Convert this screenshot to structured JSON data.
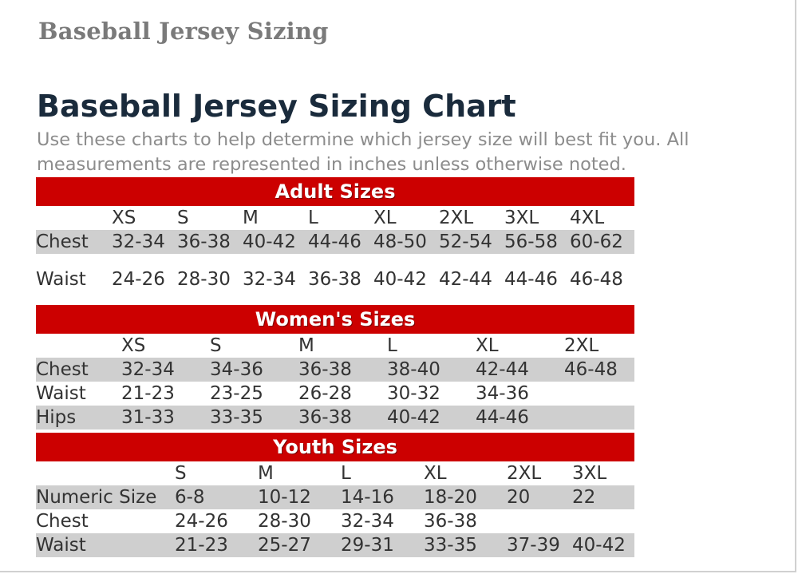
{
  "page": {
    "heading": "Baseball Jersey Sizing",
    "title": "Baseball Jersey Sizing Chart",
    "intro": "Use these charts to help determine which jersey size will best fit you. All measurements are represented in inches unless otherwise noted."
  },
  "adult": {
    "title": "Adult Sizes",
    "sizes": [
      "XS",
      "S",
      "M",
      "L",
      "XL",
      "2XL",
      "3XL",
      "4XL"
    ],
    "rows": [
      {
        "label": "Chest",
        "values": [
          "32-34",
          "36-38",
          "40-42",
          "44-46",
          "48-50",
          "52-54",
          "56-58",
          "60-62"
        ]
      },
      {
        "label": "Waist",
        "values": [
          "24-26",
          "28-30",
          "32-34",
          "36-38",
          "40-42",
          "42-44",
          "44-46",
          "46-48"
        ]
      }
    ]
  },
  "women": {
    "title": "Women's Sizes",
    "sizes": [
      "XS",
      "S",
      "M",
      "L",
      "XL",
      "2XL"
    ],
    "rows": [
      {
        "label": "Chest",
        "values": [
          "32-34",
          "34-36",
          "36-38",
          "38-40",
          "42-44",
          "46-48"
        ]
      },
      {
        "label": "Waist",
        "values": [
          "21-23",
          "23-25",
          "26-28",
          "30-32",
          "34-36",
          ""
        ]
      },
      {
        "label": "Hips",
        "values": [
          "31-33",
          "33-35",
          "36-38",
          "40-42",
          "44-46",
          ""
        ]
      }
    ]
  },
  "youth": {
    "title": "Youth Sizes",
    "sizes": [
      "S",
      "M",
      "L",
      "XL",
      "2XL",
      "3XL"
    ],
    "rows": [
      {
        "label": "Numeric Size",
        "values": [
          "6-8",
          "10-12",
          "14-16",
          "18-20",
          "20",
          "22"
        ]
      },
      {
        "label": "Chest",
        "values": [
          "24-26",
          "28-30",
          "32-34",
          "36-38",
          "",
          ""
        ]
      },
      {
        "label": "Waist",
        "values": [
          "21-23",
          "25-27",
          "29-31",
          "33-35",
          "37-39",
          "40-42"
        ]
      }
    ]
  }
}
